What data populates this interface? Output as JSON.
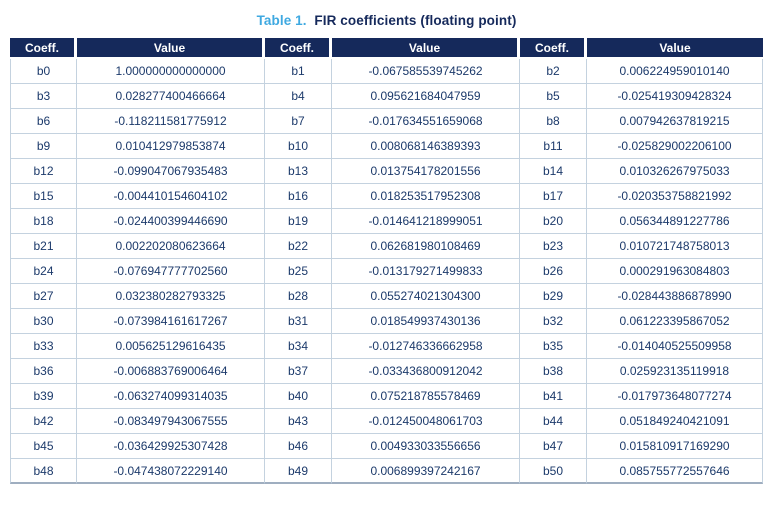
{
  "title": {
    "prefix": "Table 1.",
    "text": "FIR coefficients (floating point)"
  },
  "colors": {
    "accent_blue": "#3FA9E1",
    "navy": "#15295B",
    "cell_text": "#1C3A6B",
    "grid_line": "#C4D2DF"
  },
  "table": {
    "headers": [
      "Coeff.",
      "Value",
      "Coeff.",
      "Value",
      "Coeff.",
      "Value"
    ],
    "rows": [
      [
        "b0",
        "1.000000000000000",
        "b1",
        "-0.067585539745262",
        "b2",
        "0.006224959010140"
      ],
      [
        "b3",
        "0.028277400466664",
        "b4",
        "0.095621684047959",
        "b5",
        "-0.025419309428324"
      ],
      [
        "b6",
        "-0.118211581775912",
        "b7",
        "-0.017634551659068",
        "b8",
        "0.007942637819215"
      ],
      [
        "b9",
        "0.010412979853874",
        "b10",
        "0.008068146389393",
        "b11",
        "-0.025829002206100"
      ],
      [
        "b12",
        "-0.099047067935483",
        "b13",
        "0.013754178201556",
        "b14",
        "0.010326267975033"
      ],
      [
        "b15",
        "-0.004410154604102",
        "b16",
        "0.018253517952308",
        "b17",
        "-0.020353758821992"
      ],
      [
        "b18",
        "-0.024400399446690",
        "b19",
        "-0.014641218999051",
        "b20",
        "0.056344891227786"
      ],
      [
        "b21",
        "0.002202080623664",
        "b22",
        "0.062681980108469",
        "b23",
        "0.010721748758013"
      ],
      [
        "b24",
        "-0.076947777702560",
        "b25",
        "-0.013179271499833",
        "b26",
        "0.000291963084803"
      ],
      [
        "b27",
        "0.032380282793325",
        "b28",
        "0.055274021304300",
        "b29",
        "-0.028443886878990"
      ],
      [
        "b30",
        "-0.073984161617267",
        "b31",
        "0.018549937430136",
        "b32",
        "0.061223395867052"
      ],
      [
        "b33",
        "0.005625129616435",
        "b34",
        "-0.012746336662958",
        "b35",
        "-0.014040525509958"
      ],
      [
        "b36",
        "-0.006883769006464",
        "b37",
        "-0.033436800912042",
        "b38",
        "0.025923135119918"
      ],
      [
        "b39",
        "-0.063274099314035",
        "b40",
        "0.075218785578469",
        "b41",
        "-0.017973648077274"
      ],
      [
        "b42",
        "-0.083497943067555",
        "b43",
        "-0.012450048061703",
        "b44",
        "0.051849240421091"
      ],
      [
        "b45",
        "-0.036429925307428",
        "b46",
        "0.004933033556656",
        "b47",
        "0.015810917169290"
      ],
      [
        "b48",
        "-0.047438072229140",
        "b49",
        "0.006899397242167",
        "b50",
        "0.085755772557646"
      ]
    ]
  }
}
